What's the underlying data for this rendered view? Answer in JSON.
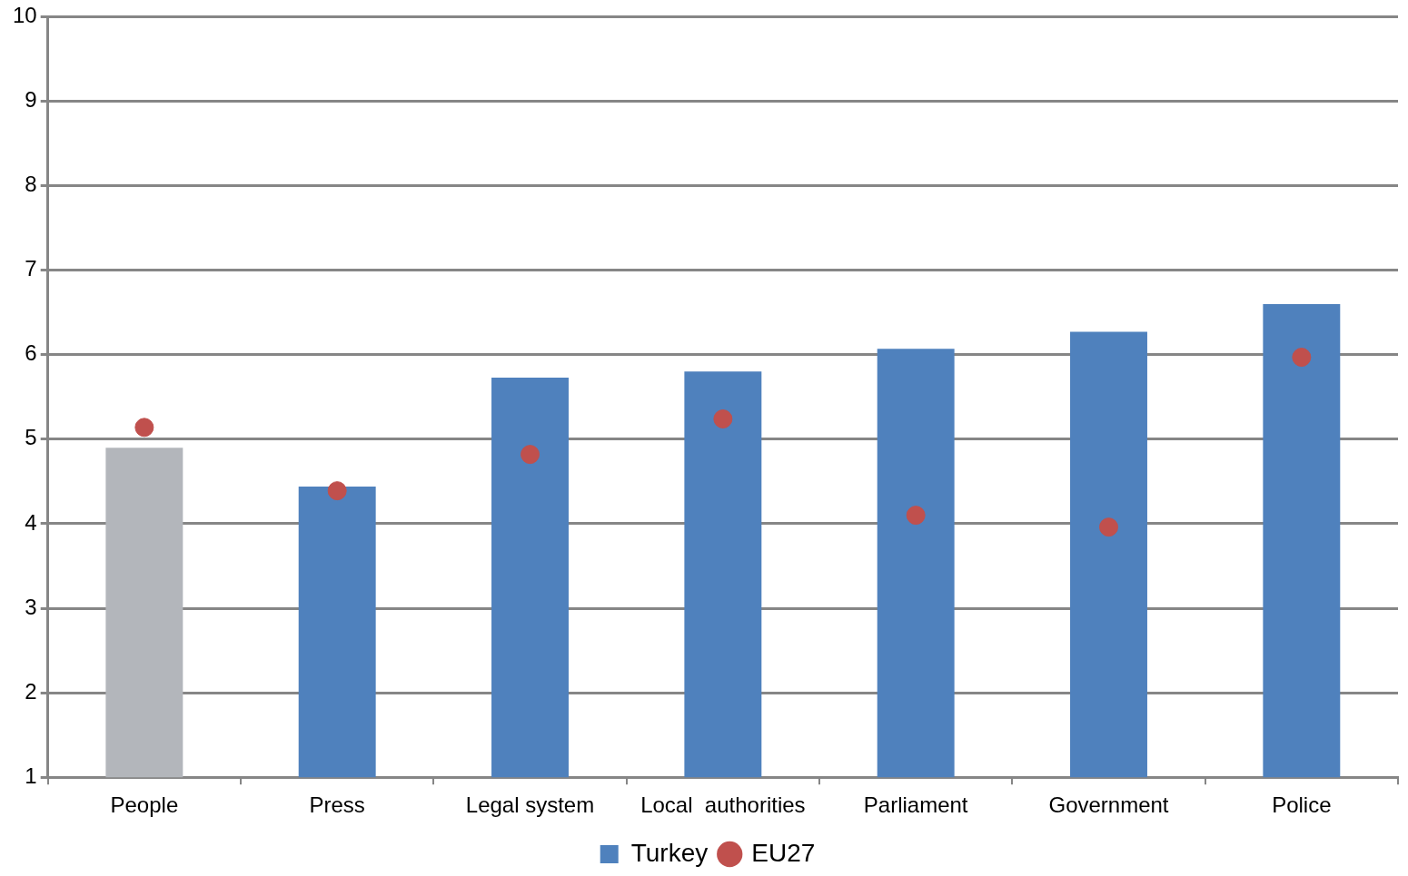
{
  "chart_data": {
    "type": "bar",
    "categories": [
      "People",
      "Press",
      "Legal system",
      "Local  authorities",
      "Parliament",
      "Government",
      "Police"
    ],
    "series": [
      {
        "name": "Turkey",
        "color": "#4f81bd",
        "colors": [
          "#b3b6bb",
          "#4f81bd",
          "#4f81bd",
          "#4f81bd",
          "#4f81bd",
          "#4f81bd",
          "#4f81bd"
        ],
        "values": [
          4.9,
          4.44,
          5.73,
          5.8,
          6.07,
          6.27,
          6.6
        ]
      },
      {
        "name": "EU27",
        "type": "scatter",
        "color": "#c0504d",
        "marker": "circle",
        "values": [
          5.14,
          4.39,
          4.82,
          5.24,
          4.1,
          3.96,
          5.97
        ]
      }
    ],
    "ylim": [
      1,
      10
    ],
    "yticks": [
      1,
      2,
      3,
      4,
      5,
      6,
      7,
      8,
      9,
      10
    ],
    "grid": "y",
    "legend": "bottom"
  }
}
